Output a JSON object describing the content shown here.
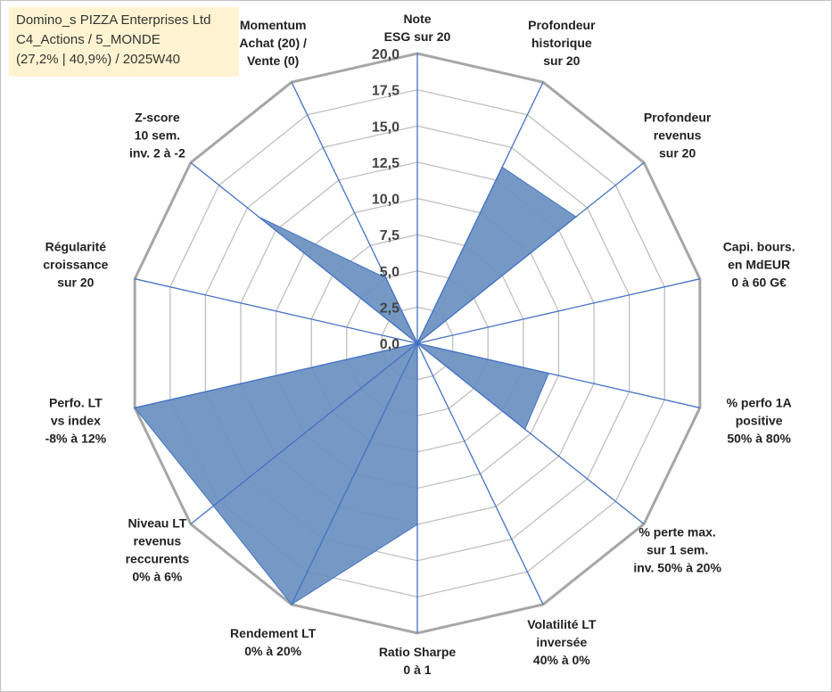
{
  "info": {
    "line1": "Domino_s PIZZA Enterprises Ltd",
    "line2": "C4_Actions / 5_MONDE",
    "line3": "(27,2% | 40,9%) / 2025W40"
  },
  "chart_data": {
    "type": "radar",
    "title": "",
    "rmin": 0,
    "rmax": 20,
    "ticks": [
      "0,0",
      "2,5",
      "5,0",
      "7,5",
      "10,0",
      "12,5",
      "15,0",
      "17,5",
      "20,0"
    ],
    "tick_values": [
      0,
      2.5,
      5,
      7.5,
      10,
      12.5,
      15,
      17.5,
      20
    ],
    "axes": [
      {
        "lines": [
          "Note",
          "ESG sur 20"
        ],
        "value": 0
      },
      {
        "lines": [
          "Profondeur",
          "historique",
          "sur 20"
        ],
        "value": 13.5
      },
      {
        "lines": [
          "Profondeur",
          "revenus",
          "sur 20"
        ],
        "value": 14
      },
      {
        "lines": [
          "Capi. bours.",
          "en MdEUR",
          "0 à 60 G€"
        ],
        "value": 0
      },
      {
        "lines": [
          "% perfo 1A",
          "positive",
          "50% à 80%"
        ],
        "value": 9.3
      },
      {
        "lines": [
          "% perte max.",
          "sur 1 sem.",
          "inv. 50% à 20%"
        ],
        "value": 9.5
      },
      {
        "lines": [
          "Volatilité LT",
          "inversée",
          "40% à 0%"
        ],
        "value": 0
      },
      {
        "lines": [
          "Ratio Sharpe",
          "0 à 1"
        ],
        "value": 12.5
      },
      {
        "lines": [
          "Rendement LT",
          "0% à 20%"
        ],
        "value": 20
      },
      {
        "lines": [
          "Niveau LT",
          "revenus",
          "reccurents",
          "0% à 6%"
        ],
        "value": 18
      },
      {
        "lines": [
          "Perfo. LT",
          "vs index",
          "-8% à 12%"
        ],
        "value": 20
      },
      {
        "lines": [
          "Régularité",
          "croissance",
          "sur 20"
        ],
        "value": 0
      },
      {
        "lines": [
          "Z-score",
          "10 sem.",
          "inv. 2 à -2"
        ],
        "value": 14
      },
      {
        "lines": [
          "Momentum",
          "Achat (20) /",
          "Vente (0)"
        ],
        "value": 5
      }
    ],
    "colors": {
      "fill": "#6a8fc0",
      "spoke": "#4472c4",
      "grid": "#bfbfbf",
      "grid_dark": "#a6a6a6"
    }
  }
}
